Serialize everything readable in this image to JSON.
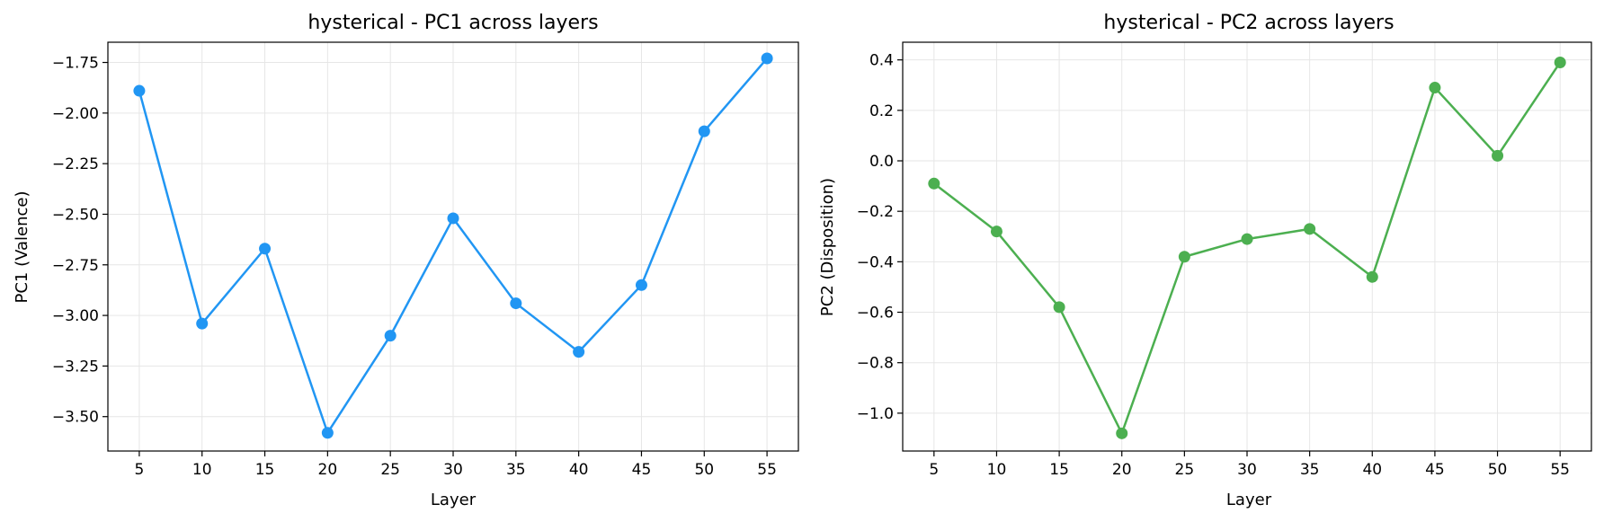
{
  "chart_data": [
    {
      "type": "line",
      "title": "hysterical - PC1 across layers",
      "xlabel": "Layer",
      "ylabel": "PC1 (Valence)",
      "x": [
        5,
        10,
        15,
        20,
        25,
        30,
        35,
        40,
        45,
        50,
        55
      ],
      "xticks": [
        5,
        10,
        15,
        20,
        25,
        30,
        35,
        40,
        45,
        50,
        55
      ],
      "xlim": [
        2.5,
        57.5
      ],
      "series": [
        {
          "values": [
            -1.89,
            -3.04,
            -2.67,
            -3.58,
            -3.1,
            -2.52,
            -2.94,
            -3.18,
            -2.85,
            -2.09,
            -1.73
          ]
        }
      ],
      "yticks": [
        -1.75,
        -2.0,
        -2.25,
        -2.5,
        -2.75,
        -3.0,
        -3.25,
        -3.5
      ],
      "ytick_labels": [
        "−1.75",
        "−2.00",
        "−2.25",
        "−2.50",
        "−2.75",
        "−3.00",
        "−3.25",
        "−3.50"
      ],
      "ylim": [
        -3.67,
        -1.65
      ],
      "color": "#2196f3",
      "grid": true,
      "legend": "none"
    },
    {
      "type": "line",
      "title": "hysterical - PC2 across layers",
      "xlabel": "Layer",
      "ylabel": "PC2 (Disposition)",
      "x": [
        5,
        10,
        15,
        20,
        25,
        30,
        35,
        40,
        45,
        50,
        55
      ],
      "xticks": [
        5,
        10,
        15,
        20,
        25,
        30,
        35,
        40,
        45,
        50,
        55
      ],
      "xlim": [
        2.5,
        57.5
      ],
      "series": [
        {
          "values": [
            -0.09,
            -0.28,
            -0.58,
            -1.08,
            -0.38,
            -0.31,
            -0.27,
            -0.46,
            0.29,
            0.02,
            0.39
          ]
        }
      ],
      "yticks": [
        0.4,
        0.2,
        0.0,
        -0.2,
        -0.4,
        -0.6,
        -0.8,
        -1.0
      ],
      "ytick_labels": [
        "0.4",
        "0.2",
        "0.0",
        "−0.2",
        "−0.4",
        "−0.6",
        "−0.8",
        "−1.0"
      ],
      "ylim": [
        -1.15,
        0.47
      ],
      "color": "#4caf50",
      "grid": true,
      "legend": "none"
    }
  ]
}
